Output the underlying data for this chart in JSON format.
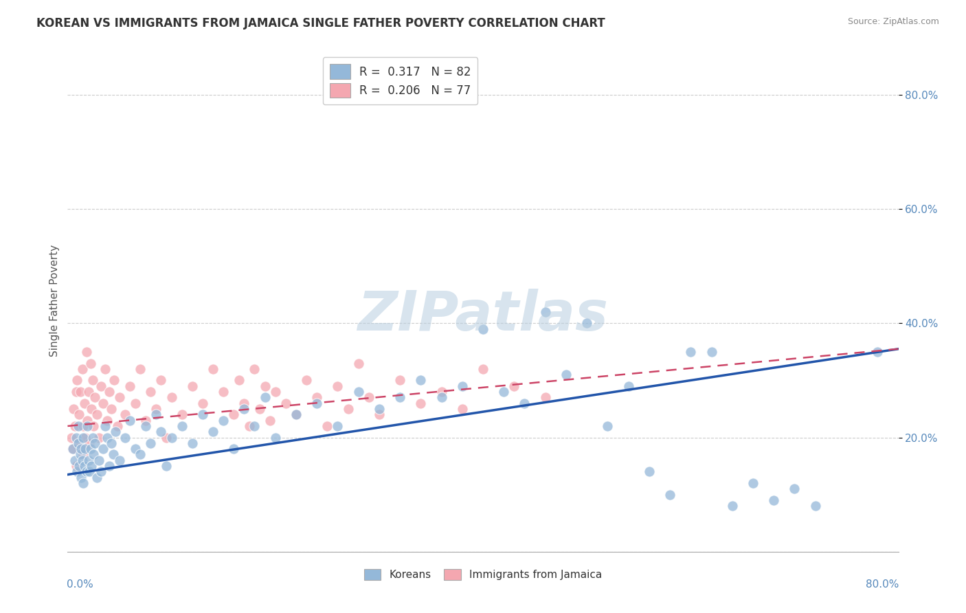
{
  "title": "KOREAN VS IMMIGRANTS FROM JAMAICA SINGLE FATHER POVERTY CORRELATION CHART",
  "source": "Source: ZipAtlas.com",
  "ylabel": "Single Father Poverty",
  "xlim": [
    0.0,
    0.8
  ],
  "ylim": [
    0.0,
    0.88
  ],
  "korean_R": 0.317,
  "korean_N": 82,
  "jamaica_R": 0.206,
  "jamaica_N": 77,
  "korean_color": "#94B8D9",
  "jamaica_color": "#F4A7B0",
  "korean_line_color": "#2255AA",
  "jamaica_line_color": "#CC4466",
  "background_color": "#FFFFFF",
  "plot_bg_color": "#FFFFFF",
  "grid_color": "#CCCCCC",
  "watermark_text": "ZIPatlas",
  "watermark_color": "#CCCCCC",
  "title_fontsize": 12,
  "legend_fontsize": 12,
  "korean_scatter_x": [
    0.005,
    0.007,
    0.008,
    0.009,
    0.01,
    0.01,
    0.011,
    0.012,
    0.013,
    0.013,
    0.014,
    0.015,
    0.015,
    0.016,
    0.017,
    0.018,
    0.019,
    0.02,
    0.021,
    0.022,
    0.023,
    0.024,
    0.025,
    0.026,
    0.028,
    0.03,
    0.032,
    0.034,
    0.036,
    0.038,
    0.04,
    0.042,
    0.044,
    0.046,
    0.05,
    0.055,
    0.06,
    0.065,
    0.07,
    0.075,
    0.08,
    0.085,
    0.09,
    0.095,
    0.1,
    0.11,
    0.12,
    0.13,
    0.14,
    0.15,
    0.16,
    0.17,
    0.18,
    0.19,
    0.2,
    0.22,
    0.24,
    0.26,
    0.28,
    0.3,
    0.32,
    0.34,
    0.36,
    0.38,
    0.4,
    0.42,
    0.44,
    0.46,
    0.48,
    0.5,
    0.52,
    0.54,
    0.56,
    0.58,
    0.6,
    0.62,
    0.64,
    0.66,
    0.68,
    0.7,
    0.72,
    0.78
  ],
  "korean_scatter_y": [
    0.18,
    0.16,
    0.2,
    0.14,
    0.19,
    0.22,
    0.15,
    0.17,
    0.13,
    0.18,
    0.16,
    0.2,
    0.12,
    0.15,
    0.18,
    0.14,
    0.22,
    0.16,
    0.14,
    0.18,
    0.15,
    0.2,
    0.17,
    0.19,
    0.13,
    0.16,
    0.14,
    0.18,
    0.22,
    0.2,
    0.15,
    0.19,
    0.17,
    0.21,
    0.16,
    0.2,
    0.23,
    0.18,
    0.17,
    0.22,
    0.19,
    0.24,
    0.21,
    0.15,
    0.2,
    0.22,
    0.19,
    0.24,
    0.21,
    0.23,
    0.18,
    0.25,
    0.22,
    0.27,
    0.2,
    0.24,
    0.26,
    0.22,
    0.28,
    0.25,
    0.27,
    0.3,
    0.27,
    0.29,
    0.39,
    0.28,
    0.26,
    0.42,
    0.31,
    0.4,
    0.22,
    0.29,
    0.14,
    0.1,
    0.35,
    0.35,
    0.08,
    0.12,
    0.09,
    0.11,
    0.08,
    0.35
  ],
  "jamaica_scatter_x": [
    0.004,
    0.005,
    0.006,
    0.007,
    0.008,
    0.008,
    0.009,
    0.01,
    0.011,
    0.012,
    0.013,
    0.014,
    0.015,
    0.015,
    0.016,
    0.017,
    0.018,
    0.019,
    0.02,
    0.021,
    0.022,
    0.023,
    0.024,
    0.025,
    0.026,
    0.028,
    0.03,
    0.032,
    0.034,
    0.036,
    0.038,
    0.04,
    0.042,
    0.045,
    0.048,
    0.05,
    0.055,
    0.06,
    0.065,
    0.07,
    0.075,
    0.08,
    0.085,
    0.09,
    0.095,
    0.1,
    0.11,
    0.12,
    0.13,
    0.14,
    0.15,
    0.16,
    0.165,
    0.17,
    0.175,
    0.18,
    0.185,
    0.19,
    0.195,
    0.2,
    0.21,
    0.22,
    0.23,
    0.24,
    0.25,
    0.26,
    0.27,
    0.28,
    0.29,
    0.3,
    0.32,
    0.34,
    0.36,
    0.38,
    0.4,
    0.43,
    0.46
  ],
  "jamaica_scatter_y": [
    0.2,
    0.18,
    0.25,
    0.22,
    0.28,
    0.15,
    0.3,
    0.19,
    0.24,
    0.28,
    0.18,
    0.32,
    0.22,
    0.17,
    0.26,
    0.2,
    0.35,
    0.23,
    0.28,
    0.19,
    0.33,
    0.25,
    0.3,
    0.22,
    0.27,
    0.24,
    0.2,
    0.29,
    0.26,
    0.32,
    0.23,
    0.28,
    0.25,
    0.3,
    0.22,
    0.27,
    0.24,
    0.29,
    0.26,
    0.32,
    0.23,
    0.28,
    0.25,
    0.3,
    0.2,
    0.27,
    0.24,
    0.29,
    0.26,
    0.32,
    0.28,
    0.24,
    0.3,
    0.26,
    0.22,
    0.32,
    0.25,
    0.29,
    0.23,
    0.28,
    0.26,
    0.24,
    0.3,
    0.27,
    0.22,
    0.29,
    0.25,
    0.33,
    0.27,
    0.24,
    0.3,
    0.26,
    0.28,
    0.25,
    0.32,
    0.29,
    0.27
  ],
  "korean_trend_x0": 0.0,
  "korean_trend_y0": 0.135,
  "korean_trend_x1": 0.8,
  "korean_trend_y1": 0.355,
  "jamaica_trend_x0": 0.0,
  "jamaica_trend_y0": 0.22,
  "jamaica_trend_x1": 0.8,
  "jamaica_trend_y1": 0.355
}
